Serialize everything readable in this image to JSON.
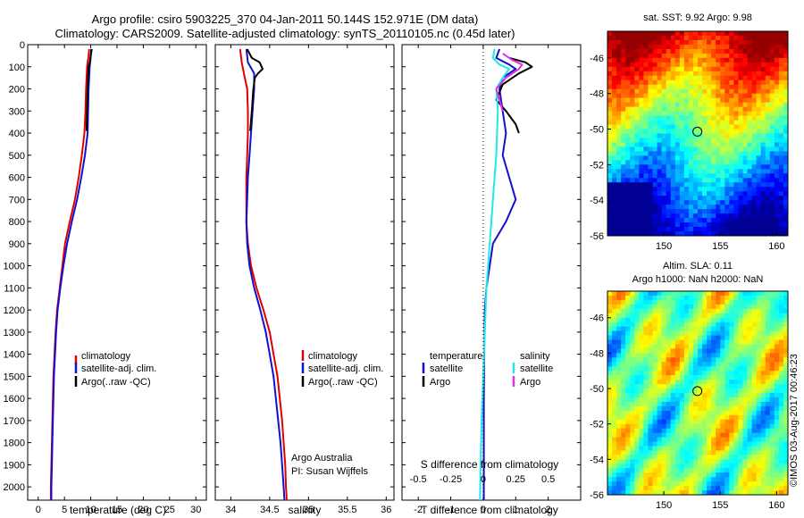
{
  "header": {
    "title_line1": "Argo profile: csiro 5903225_370 04-Jan-2011 50.144S 152.971E (DM data)",
    "title_line2": "Climatology: CARS2009. Satellite-adjusted climatology: synTS_20110105.nc (0.45d later)"
  },
  "colors": {
    "climatology": "#e00000",
    "satellite": "#1010d0",
    "argo": "#000000",
    "salinity_satellite": "#22e8e8",
    "salinity_argo": "#e030e0"
  },
  "chart_data": [
    {
      "type": "line",
      "name": "temperature-panel",
      "xlabel": "temperature (deg C)",
      "ylabel": "",
      "xlim": [
        -2,
        32
      ],
      "ylim": [
        2060,
        0
      ],
      "xticks": [
        0,
        5,
        10,
        15,
        20,
        25,
        30
      ],
      "yticks": [
        0,
        100,
        200,
        300,
        400,
        500,
        600,
        700,
        800,
        900,
        1000,
        1100,
        1200,
        1300,
        1400,
        1500,
        1600,
        1700,
        1800,
        1900,
        2000
      ],
      "legend": {
        "position": "lower-center",
        "entries": [
          "climatology",
          "satellite-adj. clim.",
          "Argo(..raw -QC)"
        ]
      },
      "series": [
        {
          "name": "climatology",
          "color": "climatology",
          "points": [
            [
              9.7,
              20
            ],
            [
              9.6,
              50
            ],
            [
              9.4,
              80
            ],
            [
              9.3,
              100
            ],
            [
              9.2,
              150
            ],
            [
              9.1,
              200
            ],
            [
              9.0,
              300
            ],
            [
              8.8,
              400
            ],
            [
              8.3,
              500
            ],
            [
              7.7,
              600
            ],
            [
              7.0,
              700
            ],
            [
              6.0,
              800
            ],
            [
              5.1,
              900
            ],
            [
              4.6,
              1000
            ],
            [
              4.1,
              1100
            ],
            [
              3.6,
              1200
            ],
            [
              3.3,
              1300
            ],
            [
              3.1,
              1400
            ],
            [
              2.9,
              1500
            ],
            [
              2.8,
              1600
            ],
            [
              2.7,
              1700
            ],
            [
              2.6,
              1800
            ],
            [
              2.5,
              1900
            ],
            [
              2.4,
              2000
            ],
            [
              2.4,
              2060
            ]
          ]
        },
        {
          "name": "satellite-adj. clim.",
          "color": "satellite",
          "points": [
            [
              10.2,
              20
            ],
            [
              10.0,
              50
            ],
            [
              9.9,
              80
            ],
            [
              9.8,
              100
            ],
            [
              9.7,
              150
            ],
            [
              9.6,
              200
            ],
            [
              9.5,
              300
            ],
            [
              9.4,
              400
            ],
            [
              8.9,
              500
            ],
            [
              8.2,
              600
            ],
            [
              7.4,
              700
            ],
            [
              6.4,
              800
            ],
            [
              5.5,
              900
            ],
            [
              4.8,
              1000
            ],
            [
              4.2,
              1100
            ],
            [
              3.7,
              1200
            ],
            [
              3.4,
              1300
            ],
            [
              3.2,
              1400
            ],
            [
              3.0,
              1500
            ],
            [
              2.9,
              1600
            ],
            [
              2.8,
              1700
            ],
            [
              2.7,
              1800
            ],
            [
              2.6,
              1900
            ],
            [
              2.5,
              2000
            ],
            [
              2.5,
              2060
            ]
          ]
        },
        {
          "name": "Argo(..raw -QC)",
          "color": "argo",
          "points": [
            [
              10.1,
              20
            ],
            [
              10.0,
              50
            ],
            [
              9.8,
              80
            ],
            [
              9.6,
              100
            ],
            [
              9.5,
              150
            ],
            [
              9.4,
              200
            ],
            [
              9.3,
              300
            ],
            [
              9.2,
              390
            ]
          ]
        }
      ]
    },
    {
      "type": "line",
      "name": "salinity-panel",
      "xlabel": "salinity",
      "xlim": [
        33.8,
        36.1
      ],
      "ylim": [
        2060,
        0
      ],
      "xticks": [
        34,
        34.5,
        35,
        35.5,
        36
      ],
      "legend": {
        "position": "lower-right",
        "entries": [
          "climatology",
          "satellite-adj. clim.",
          "Argo(..raw -QC)"
        ]
      },
      "annotation": [
        "Argo Australia",
        "PI: Susan Wijffels"
      ],
      "series": [
        {
          "name": "climatology",
          "color": "climatology",
          "points": [
            [
              34.12,
              20
            ],
            [
              34.14,
              80
            ],
            [
              34.18,
              150
            ],
            [
              34.21,
              200
            ],
            [
              34.22,
              300
            ],
            [
              34.22,
              400
            ],
            [
              34.21,
              500
            ],
            [
              34.2,
              600
            ],
            [
              34.2,
              700
            ],
            [
              34.2,
              800
            ],
            [
              34.22,
              900
            ],
            [
              34.26,
              1000
            ],
            [
              34.33,
              1100
            ],
            [
              34.42,
              1200
            ],
            [
              34.5,
              1300
            ],
            [
              34.55,
              1400
            ],
            [
              34.6,
              1500
            ],
            [
              34.63,
              1600
            ],
            [
              34.66,
              1700
            ],
            [
              34.68,
              1800
            ],
            [
              34.7,
              1900
            ],
            [
              34.71,
              2000
            ],
            [
              34.72,
              2060
            ]
          ]
        },
        {
          "name": "satellite-adj. clim.",
          "color": "satellite",
          "points": [
            [
              34.2,
              20
            ],
            [
              34.22,
              80
            ],
            [
              34.3,
              130
            ],
            [
              34.3,
              200
            ],
            [
              34.28,
              300
            ],
            [
              34.26,
              400
            ],
            [
              34.24,
              500
            ],
            [
              34.22,
              600
            ],
            [
              34.21,
              700
            ],
            [
              34.2,
              800
            ],
            [
              34.21,
              900
            ],
            [
              34.24,
              1000
            ],
            [
              34.3,
              1100
            ],
            [
              34.38,
              1200
            ],
            [
              34.45,
              1300
            ],
            [
              34.5,
              1400
            ],
            [
              34.55,
              1500
            ],
            [
              34.58,
              1600
            ],
            [
              34.61,
              1700
            ],
            [
              34.64,
              1800
            ],
            [
              34.66,
              1900
            ],
            [
              34.68,
              2000
            ],
            [
              34.69,
              2060
            ]
          ]
        },
        {
          "name": "Argo(..raw -QC)",
          "color": "argo",
          "points": [
            [
              34.21,
              20
            ],
            [
              34.27,
              60
            ],
            [
              34.37,
              80
            ],
            [
              34.41,
              110
            ],
            [
              34.35,
              130
            ],
            [
              34.31,
              150
            ],
            [
              34.29,
              200
            ],
            [
              34.27,
              300
            ],
            [
              34.25,
              390
            ]
          ]
        }
      ]
    },
    {
      "type": "line",
      "name": "difference-panel",
      "xlabel": "T difference from climatology",
      "top_axis_label": "S difference from climatology",
      "xlim": [
        -2.5,
        3.0
      ],
      "ylim": [
        2060,
        0
      ],
      "xticks": [
        -2,
        -1,
        0,
        1,
        2
      ],
      "top_ticks": [
        {
          "value": -0.5,
          "label": "-0.5"
        },
        {
          "value": -0.25,
          "label": "-0.25"
        },
        {
          "value": 0,
          "label": "0"
        },
        {
          "value": 0.25,
          "label": "0.25"
        },
        {
          "value": 0.5,
          "label": "0.5"
        }
      ],
      "legend_temperature": {
        "heading": "temperature",
        "entries": [
          "satellite",
          "Argo"
        ]
      },
      "legend_salinity": {
        "heading": "salinity",
        "entries": [
          "satellite",
          "Argo"
        ]
      },
      "series": [
        {
          "name": "temperature satellite",
          "color": "satellite",
          "points": [
            [
              0.5,
              20
            ],
            [
              0.4,
              60
            ],
            [
              0.8,
              90
            ],
            [
              1.0,
              110
            ],
            [
              0.6,
              150
            ],
            [
              0.5,
              200
            ],
            [
              0.6,
              300
            ],
            [
              0.7,
              400
            ],
            [
              0.6,
              500
            ],
            [
              0.8,
              600
            ],
            [
              1.0,
              700
            ],
            [
              0.7,
              800
            ],
            [
              0.3,
              900
            ],
            [
              0.2,
              1000
            ],
            [
              0.1,
              1100
            ],
            [
              0.05,
              1200
            ],
            [
              0.03,
              1400
            ],
            [
              0.02,
              1600
            ],
            [
              0.02,
              1800
            ],
            [
              0.02,
              2000
            ],
            [
              0.02,
              2060
            ]
          ]
        },
        {
          "name": "temperature Argo",
          "color": "argo",
          "points": [
            [
              0.8,
              60
            ],
            [
              1.3,
              80
            ],
            [
              1.5,
              100
            ],
            [
              1.1,
              130
            ],
            [
              0.6,
              180
            ],
            [
              0.4,
              250
            ],
            [
              0.7,
              300
            ],
            [
              1.0,
              360
            ],
            [
              1.1,
              400
            ]
          ]
        },
        {
          "name": "salinity satellite",
          "color": "salinity_satellite",
          "points": [
            [
              0.35,
              20
            ],
            [
              0.3,
              60
            ],
            [
              0.5,
              90
            ],
            [
              0.8,
              110
            ],
            [
              0.6,
              150
            ],
            [
              0.4,
              200
            ],
            [
              0.45,
              300
            ],
            [
              0.4,
              500
            ],
            [
              0.3,
              700
            ],
            [
              0.2,
              900
            ],
            [
              0.1,
              1100
            ],
            [
              0.05,
              1300
            ],
            [
              0.0,
              1500
            ],
            [
              -0.05,
              1700
            ],
            [
              -0.08,
              1900
            ],
            [
              -0.1,
              2060
            ]
          ]
        },
        {
          "name": "salinity Argo",
          "color": "salinity_argo",
          "points": [
            [
              0.6,
              40
            ],
            [
              0.9,
              70
            ],
            [
              1.2,
              90
            ],
            [
              1.1,
              110
            ],
            [
              0.7,
              150
            ],
            [
              0.4,
              200
            ],
            [
              0.5,
              250
            ],
            [
              0.6,
              300
            ]
          ]
        }
      ]
    },
    {
      "type": "heatmap",
      "name": "sst-map",
      "title": "sat. SST: 9.92  Argo: 9.98",
      "xlim": [
        145,
        161
      ],
      "ylim": [
        -56,
        -44.5
      ],
      "xticks": [
        150,
        155,
        160
      ],
      "yticks": [
        -46,
        -48,
        -50,
        -52,
        -54,
        -56
      ],
      "marker": [
        152.971,
        -50.144
      ]
    },
    {
      "type": "heatmap",
      "name": "sla-map",
      "title_line1": "Altim. SLA: 0.11",
      "title_line2": "Argo h1000: NaN h2000: NaN",
      "xlim": [
        145,
        161
      ],
      "ylim": [
        -56,
        -44.5
      ],
      "xticks": [
        150,
        155,
        160
      ],
      "yticks": [
        -46,
        -48,
        -50,
        -52,
        -54,
        -56
      ],
      "marker": [
        152.971,
        -50.144
      ]
    }
  ],
  "side_label": "©IMOS 03-Aug-2017 00:46:23"
}
